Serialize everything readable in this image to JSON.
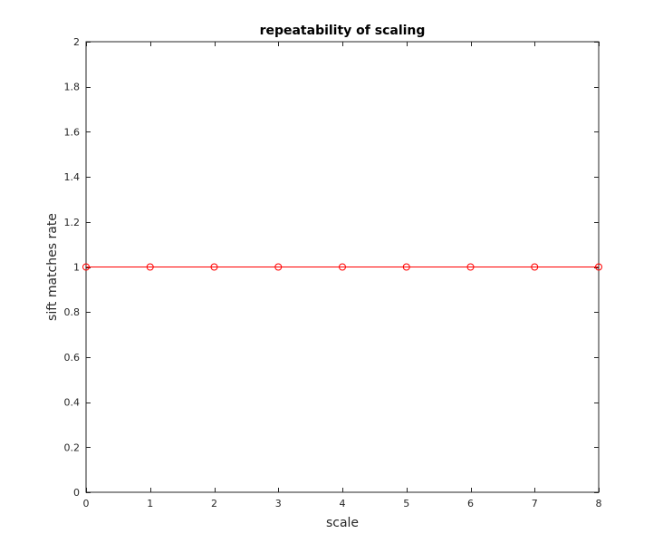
{
  "chart_data": {
    "type": "line",
    "title": "repeatability of scaling",
    "xlabel": "scale",
    "ylabel": "sift matches rate",
    "xlim": [
      0,
      8
    ],
    "ylim": [
      0,
      2
    ],
    "x_ticks": [
      0,
      1,
      2,
      3,
      4,
      5,
      6,
      7,
      8
    ],
    "x_tick_labels": [
      "0",
      "1",
      "2",
      "3",
      "4",
      "5",
      "6",
      "7",
      "8"
    ],
    "y_ticks": [
      0,
      0.2,
      0.4,
      0.6,
      0.8,
      1,
      1.2,
      1.4,
      1.6,
      1.8,
      2
    ],
    "y_tick_labels": [
      "0",
      "0.2",
      "0.4",
      "0.6",
      "0.8",
      "1",
      "1.2",
      "1.4",
      "1.6",
      "1.8",
      "2"
    ],
    "grid": false,
    "legend": "none",
    "series": [
      {
        "x": [
          0,
          1,
          2,
          3,
          4,
          5,
          6,
          7,
          8
        ],
        "values": [
          1,
          1,
          1,
          1,
          1,
          1,
          1,
          1,
          1
        ],
        "color": "#ff0000",
        "marker": "circle-open"
      }
    ]
  }
}
